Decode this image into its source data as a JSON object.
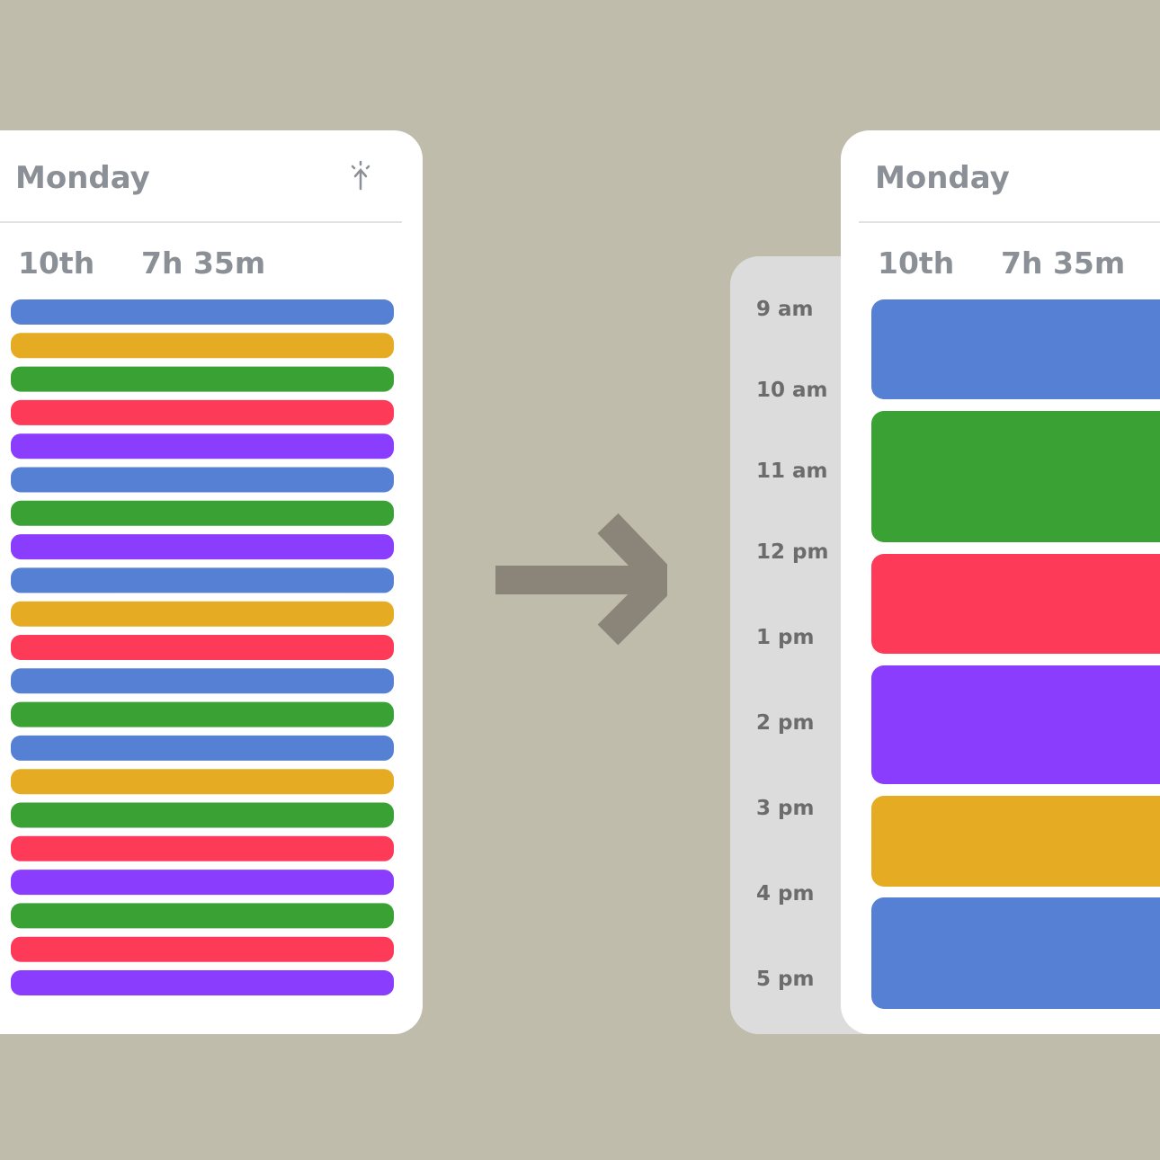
{
  "before": {
    "day": "Monday",
    "date": "10th",
    "duration": "7h 35m",
    "bars": [
      "#5680d4",
      "#e5ab22",
      "#3aa234",
      "#fe3a59",
      "#8a3dfd",
      "#5680d4",
      "#3aa234",
      "#8a3dfd",
      "#5680d4",
      "#e5ab22",
      "#fe3a59",
      "#5680d4",
      "#3aa234",
      "#5680d4",
      "#e5ab22",
      "#3aa234",
      "#fe3a59",
      "#8a3dfd",
      "#3aa234",
      "#fe3a59",
      "#8a3dfd"
    ]
  },
  "after": {
    "day": "Monday",
    "date": "10th",
    "duration": "7h 35m",
    "times": [
      "9 am",
      "10 am",
      "11 am",
      "12 pm",
      "1 pm",
      "2 pm",
      "3 pm",
      "4 pm",
      "5 pm"
    ],
    "blocks": [
      "#5680d4",
      "#3aa234",
      "#fe3a59",
      "#8a3dfd",
      "#e5ab22",
      "#5680d4"
    ]
  }
}
